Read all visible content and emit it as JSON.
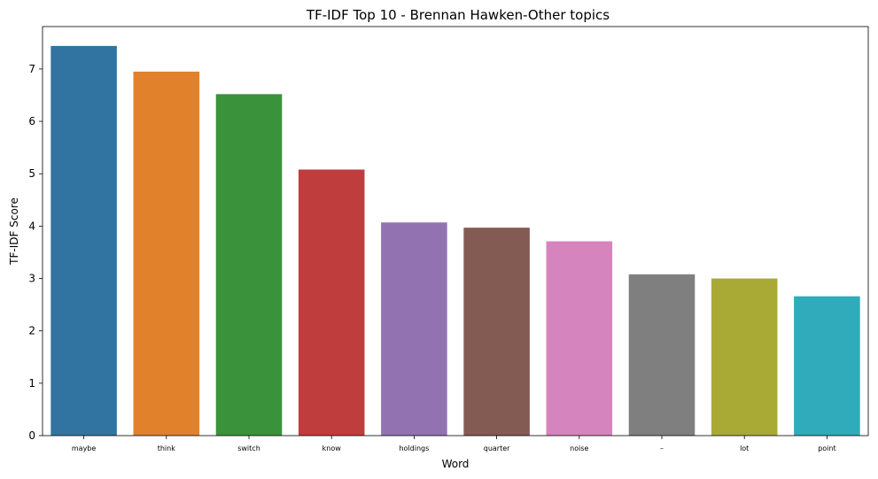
{
  "chart_data": {
    "type": "bar",
    "title": "TF-IDF Top 10 - Brennan Hawken-Other topics",
    "xlabel": "Word",
    "ylabel": "TF-IDF Score",
    "categories": [
      "maybe",
      "think",
      "switch",
      "know",
      "holdings",
      "quarter",
      "noise",
      "–",
      "lot",
      "point"
    ],
    "values": [
      7.44,
      6.95,
      6.52,
      5.08,
      4.07,
      3.97,
      3.71,
      3.08,
      3.0,
      2.66
    ],
    "colors": [
      "#3274a1",
      "#e1812c",
      "#3a923a",
      "#c03d3e",
      "#9372b2",
      "#845b53",
      "#d684bd",
      "#7f7f7f",
      "#a9aa35",
      "#2fabbb"
    ],
    "ylim": [
      0,
      7.81
    ],
    "yticks": [
      0,
      1,
      2,
      3,
      4,
      5,
      6,
      7
    ],
    "grid": false,
    "legend": "none"
  }
}
